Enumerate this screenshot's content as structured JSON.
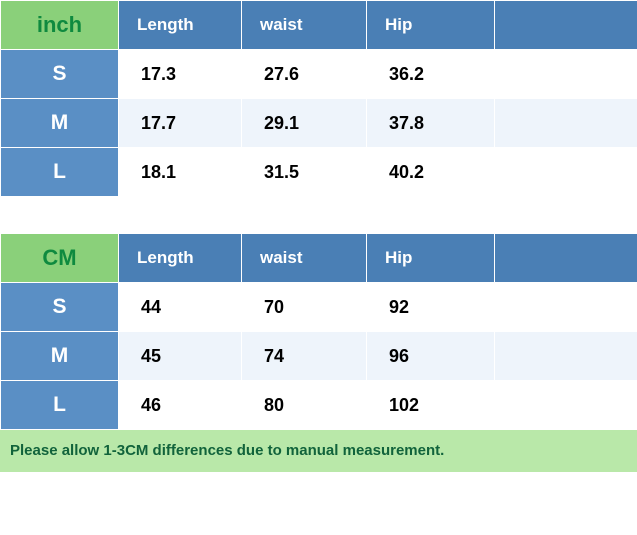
{
  "colors": {
    "header_green": "#8ad07a",
    "header_blue": "#4a7fb5",
    "row_blue": "#5a8fc5",
    "cell_light": "#eef4fb",
    "cell_white": "#ffffff",
    "note_bg": "#b9e8a9",
    "note_text": "#11633b",
    "unit_text": "#0f8a3f",
    "border": "#ffffff"
  },
  "tables": [
    {
      "unit": "inch",
      "columns": [
        "Length",
        "waist",
        "Hip"
      ],
      "rows": [
        {
          "size": "S",
          "values": [
            "17.3",
            "27.6",
            "36.2"
          ]
        },
        {
          "size": "M",
          "values": [
            "17.7",
            "29.1",
            "37.8"
          ]
        },
        {
          "size": "L",
          "values": [
            "18.1",
            "31.5",
            "40.2"
          ]
        }
      ]
    },
    {
      "unit": "CM",
      "columns": [
        "Length",
        "waist",
        "Hip"
      ],
      "rows": [
        {
          "size": "S",
          "values": [
            "44",
            "70",
            "92"
          ]
        },
        {
          "size": "M",
          "values": [
            "45",
            "74",
            "96"
          ]
        },
        {
          "size": "L",
          "values": [
            "46",
            "80",
            "102"
          ]
        }
      ]
    }
  ],
  "note": "Please allow 1-3CM differences due to manual measurement."
}
